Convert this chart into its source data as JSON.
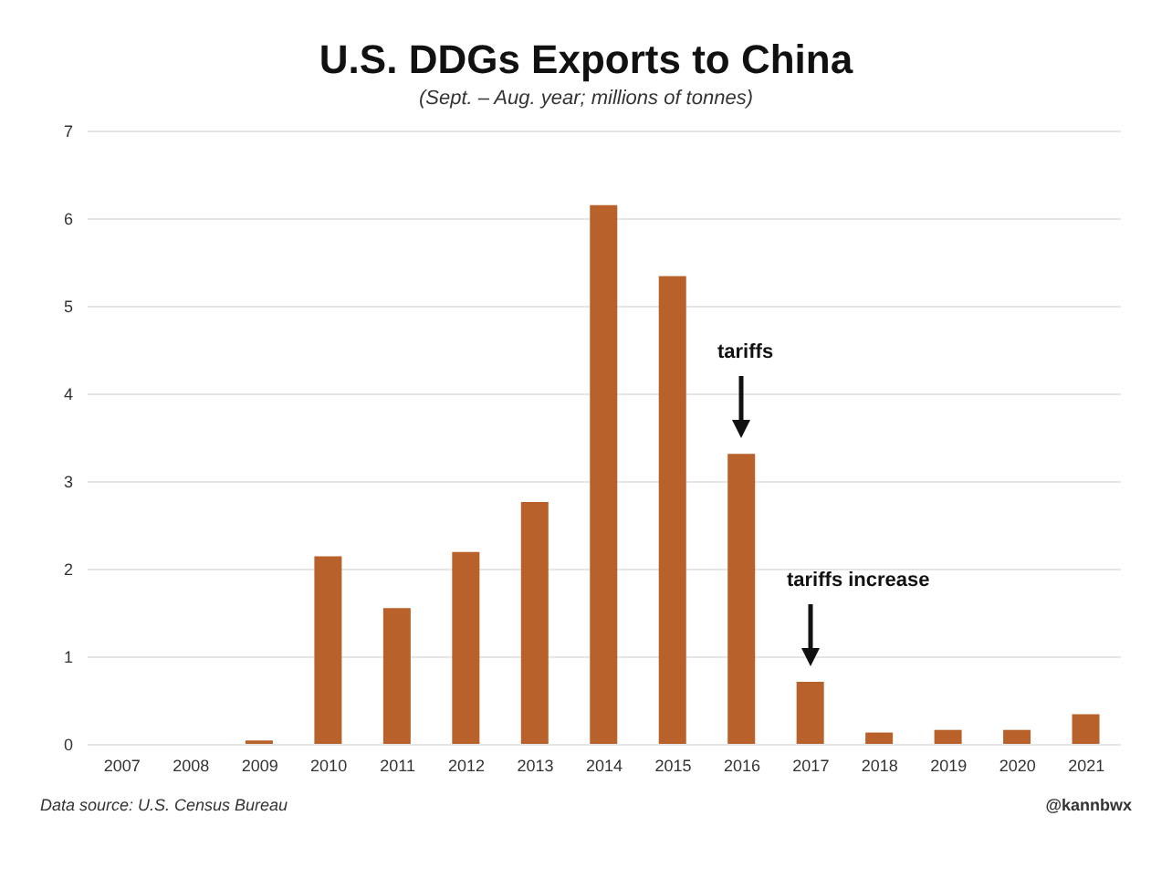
{
  "chart_data": {
    "type": "bar",
    "title": "U.S. DDGs Exports to China",
    "subtitle": "(Sept. – Aug. year; millions of tonnes)",
    "categories": [
      "2007",
      "2008",
      "2009",
      "2010",
      "2011",
      "2012",
      "2013",
      "2014",
      "2015",
      "2016",
      "2017",
      "2018",
      "2019",
      "2020",
      "2021"
    ],
    "values": [
      0,
      0,
      0.05,
      2.15,
      1.56,
      2.2,
      2.77,
      6.16,
      5.35,
      3.32,
      0.72,
      0.14,
      0.17,
      0.17,
      0.35
    ],
    "color": "#b8612a",
    "ylim": [
      0,
      7
    ],
    "yticks": [
      0,
      1,
      2,
      3,
      4,
      5,
      6,
      7
    ],
    "grid": "y",
    "legend": false,
    "annotations": [
      "tariffs",
      "tariffs increase",
      "Data source: U.S. Census Bureau",
      "@kannbwx"
    ]
  }
}
